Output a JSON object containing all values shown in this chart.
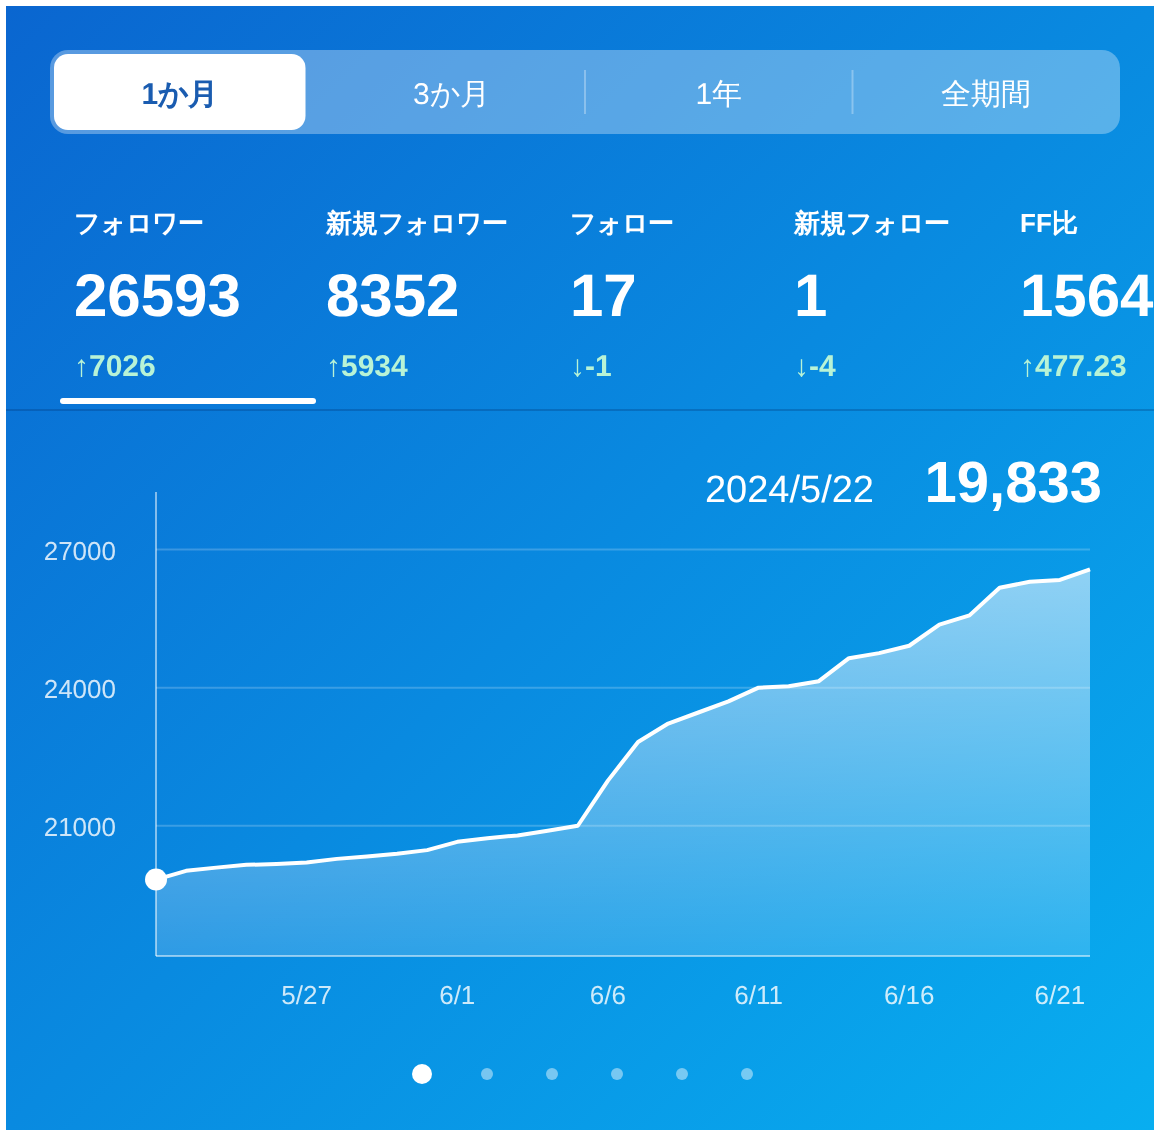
{
  "chart_data": [
    {
      "type": "other",
      "annotations": [
        "1か月",
        "3か月",
        "1年",
        "全期間"
      ]
    },
    {
      "type": "other",
      "annotations": [
        "フォロワー",
        "26593",
        "↑7026",
        "新規フォロワー",
        "8352",
        "↑5934",
        "フォロー",
        "17",
        "↓-1",
        "新規フォロー",
        "1",
        "↓-4",
        "FF比",
        "1564",
        "↑477.23"
      ]
    },
    {
      "type": "area",
      "x": [
        "2024-05-22",
        "2024-05-23",
        "2024-05-24",
        "2024-05-25",
        "2024-05-26",
        "2024-05-27",
        "2024-05-28",
        "2024-05-29",
        "2024-05-30",
        "2024-05-31",
        "2024-06-01",
        "2024-06-02",
        "2024-06-03",
        "2024-06-04",
        "2024-06-05",
        "2024-06-06",
        "2024-06-07",
        "2024-06-08",
        "2024-06-09",
        "2024-06-10",
        "2024-06-11",
        "2024-06-12",
        "2024-06-13",
        "2024-06-14",
        "2024-06-15",
        "2024-06-16",
        "2024-06-17",
        "2024-06-18",
        "2024-06-19",
        "2024-06-20",
        "2024-06-21",
        "2024-06-22"
      ],
      "series": [
        {
          "color": "#ffffff",
          "values": [
            19830,
            20020,
            20090,
            20150,
            20170,
            20200,
            20280,
            20330,
            20390,
            20470,
            20650,
            20730,
            20790,
            20890,
            21000,
            21980,
            22820,
            23220,
            23460,
            23700,
            24000,
            24030,
            24140,
            24640,
            24750,
            24910,
            25370,
            25570,
            26170,
            26300,
            26340,
            26570
          ]
        }
      ],
      "xlim": [
        "2024-05-22",
        "2024-06-22"
      ],
      "ylim": [
        18170,
        28250
      ],
      "xticks": [
        {
          "value": "2024-05-27",
          "label": "5/27"
        },
        {
          "value": "2024-06-01",
          "label": "6/1"
        },
        {
          "value": "2024-06-06",
          "label": "6/6"
        },
        {
          "value": "2024-06-11",
          "label": "6/11"
        },
        {
          "value": "2024-06-16",
          "label": "6/16"
        },
        {
          "value": "2024-06-21",
          "label": "6/21"
        }
      ],
      "yticks": [
        21000,
        24000,
        27000
      ],
      "grid": "y",
      "annotations": [
        "2024/5/22",
        "19,833"
      ]
    }
  ]
}
